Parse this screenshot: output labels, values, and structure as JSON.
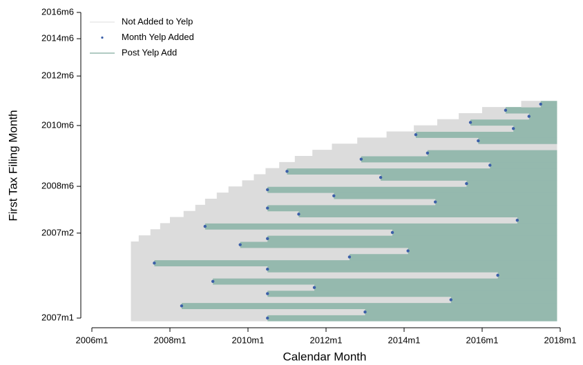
{
  "chart_data": {
    "type": "timeline",
    "xlabel": "Calendar Month",
    "ylabel": "First Tax Filing Month",
    "xlim": [
      2006,
      2018
    ],
    "ylim": [
      0,
      100
    ],
    "xticks": [
      {
        "value": 2006,
        "label": "2006m1"
      },
      {
        "value": 2008,
        "label": "2008m1"
      },
      {
        "value": 2010,
        "label": "2010m1"
      },
      {
        "value": 2012,
        "label": "2012m1"
      },
      {
        "value": 2014,
        "label": "2014m1"
      },
      {
        "value": 2016,
        "label": "2016m1"
      },
      {
        "value": 2018,
        "label": "2018m1"
      }
    ],
    "yticks": [
      {
        "value": 0,
        "label": "2007m1"
      },
      {
        "value": 27.8,
        "label": "2007m2"
      },
      {
        "value": 43.1,
        "label": "2008m6"
      },
      {
        "value": 63,
        "label": "2010m6"
      },
      {
        "value": 79.2,
        "label": "2012m6"
      },
      {
        "value": 91.4,
        "label": "2014m6"
      },
      {
        "value": 100,
        "label": "2016m6"
      }
    ],
    "series": [
      {
        "name": "Not Added to Yelp",
        "color": "#dcdcdc"
      },
      {
        "name": "Month Yelp Added",
        "color": "#3b5fa8"
      },
      {
        "name": "Post Yelp Add",
        "color": "#95b9ae"
      }
    ],
    "legend": "top-left",
    "firms": {
      "y": [
        0,
        2,
        4,
        6,
        8,
        10,
        12,
        14,
        16,
        18,
        20,
        22,
        24,
        26,
        28,
        30,
        32,
        34,
        36,
        38,
        40,
        42,
        44,
        46,
        48,
        50,
        52,
        54,
        56,
        58,
        60,
        62,
        64,
        66,
        68,
        70
      ],
      "start": [
        2007,
        2007,
        2007,
        2007,
        2007,
        2007,
        2007,
        2007,
        2007,
        2007,
        2007,
        2007,
        2007,
        2007.2,
        2007.5,
        2007.75,
        2008,
        2008.35,
        2008.65,
        2008.9,
        2009.2,
        2009.5,
        2009.85,
        2010.15,
        2010.45,
        2010.8,
        2011.2,
        2011.65,
        2012.15,
        2012.8,
        2013.55,
        2014.25,
        2014.85,
        2015.4,
        2016,
        2017
      ],
      "added": [
        2010.5,
        2013,
        2008.3,
        2015.2,
        2010.5,
        2011.7,
        2009.1,
        2016.4,
        2010.5,
        2007.6,
        2012.6,
        2014.1,
        2009.8,
        2010.5,
        2013.7,
        2008.9,
        2016.9,
        2011.3,
        2010.5,
        2014.8,
        2012.2,
        2010.5,
        2015.6,
        2013.4,
        2011,
        2016.2,
        2012.9,
        2014.6,
        null,
        2015.9,
        2014.3,
        2016.8,
        2015.7,
        2017.2,
        2016.6,
        2017.5
      ],
      "end": 2017.92
    }
  }
}
